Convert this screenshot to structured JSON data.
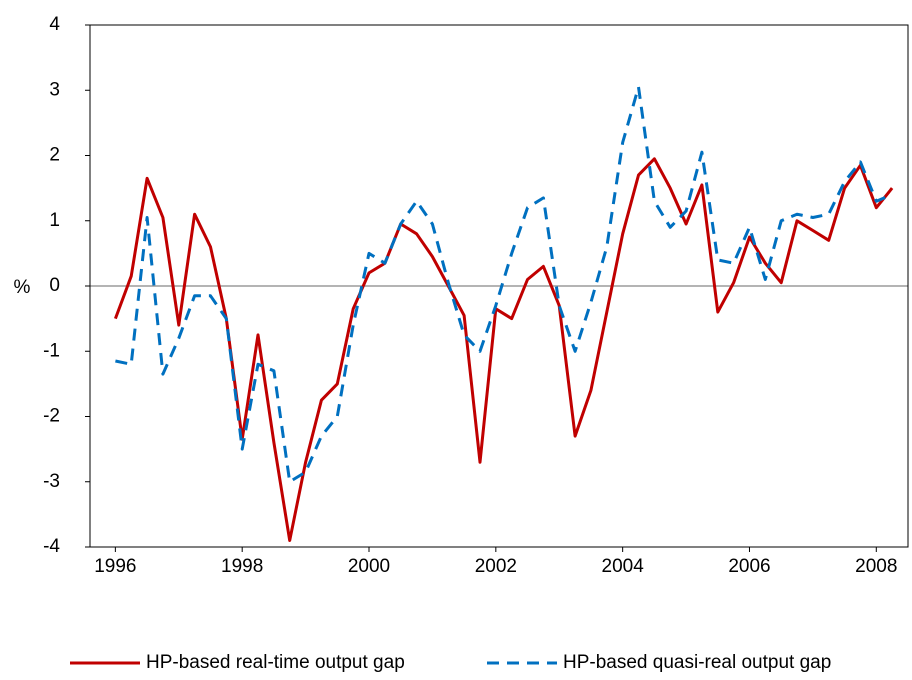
{
  "chart_data": {
    "type": "line",
    "y_label": "%",
    "x": [
      1996,
      1996.25,
      1996.5,
      1996.75,
      1997,
      1997.25,
      1997.5,
      1997.75,
      1998,
      1998.25,
      1998.5,
      1998.75,
      1999,
      1999.25,
      1999.5,
      1999.75,
      2000,
      2000.25,
      2000.5,
      2000.75,
      2001,
      2001.25,
      2001.5,
      2001.75,
      2002,
      2002.25,
      2002.5,
      2002.75,
      2003,
      2003.25,
      2003.5,
      2003.75,
      2004,
      2004.25,
      2004.5,
      2004.75,
      2005,
      2005.25,
      2005.5,
      2005.75,
      2006,
      2006.25,
      2006.5,
      2006.75,
      2007,
      2007.25,
      2007.5,
      2007.75,
      2008,
      2008.25
    ],
    "series": [
      {
        "name": "HP-based real-time output gap",
        "color": "#c00000",
        "dash": false,
        "values": [
          -0.5,
          0.15,
          1.65,
          1.05,
          -0.6,
          1.1,
          0.6,
          -0.5,
          -2.35,
          -0.75,
          -2.4,
          -3.9,
          -2.7,
          -1.75,
          -1.5,
          -0.35,
          0.2,
          0.35,
          0.95,
          0.8,
          0.45,
          0.0,
          -0.45,
          -2.7,
          -0.35,
          -0.5,
          0.1,
          0.3,
          -0.3,
          -2.3,
          -1.6,
          -0.4,
          0.8,
          1.7,
          1.95,
          1.5,
          0.95,
          1.55,
          -0.4,
          0.05,
          0.75,
          0.35,
          0.05,
          1.0,
          0.85,
          0.7,
          1.5,
          1.85,
          1.2,
          1.5
        ]
      },
      {
        "name": "HP-based quasi-real output gap",
        "color": "#0070c0",
        "dash": true,
        "values": [
          -1.15,
          -1.2,
          1.05,
          -1.35,
          -0.8,
          -0.15,
          -0.15,
          -0.5,
          -2.5,
          -1.2,
          -1.3,
          -3.0,
          -2.85,
          -2.3,
          -2.0,
          -0.6,
          0.5,
          0.35,
          0.95,
          1.3,
          0.95,
          0.05,
          -0.75,
          -1.0,
          -0.3,
          0.5,
          1.2,
          1.35,
          -0.3,
          -1.0,
          -0.25,
          0.6,
          2.2,
          3.05,
          1.3,
          0.9,
          1.15,
          2.05,
          0.4,
          0.35,
          0.9,
          0.1,
          1.0,
          1.1,
          1.05,
          1.1,
          1.6,
          1.9,
          1.3,
          1.4
        ]
      }
    ],
    "xlim": [
      1995.6,
      2008.5
    ],
    "xticks": [
      1996,
      1998,
      2000,
      2002,
      2004,
      2006,
      2008
    ],
    "ylim": [
      -4,
      4
    ],
    "yticks": [
      -4,
      -3,
      -2,
      -1,
      0,
      1,
      2,
      3,
      4
    ],
    "zero_line": true,
    "legend": "bottom"
  }
}
